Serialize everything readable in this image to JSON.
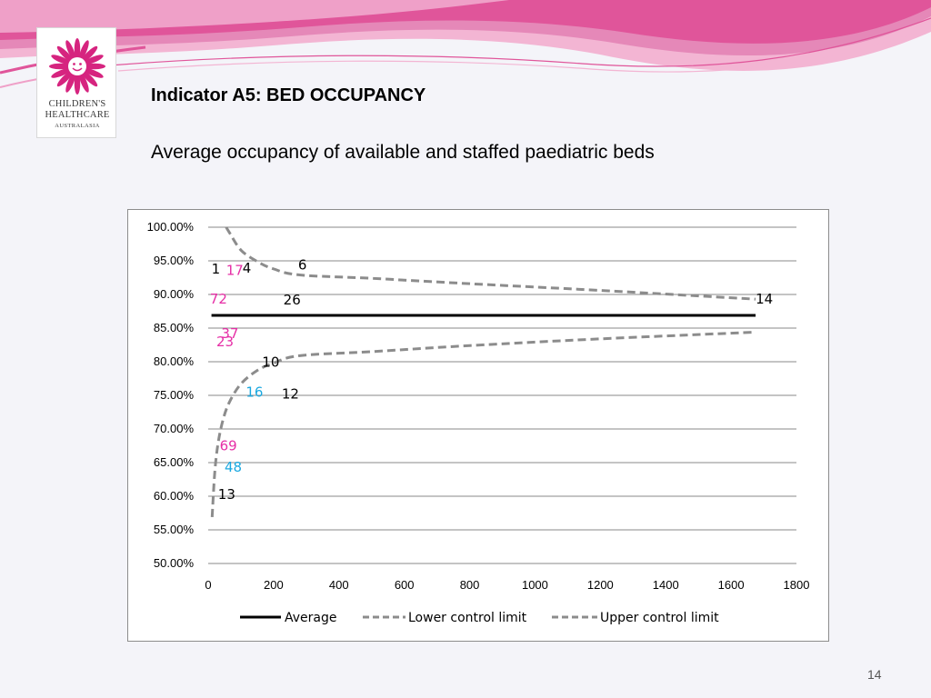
{
  "slide": {
    "title": "Indicator A5: BED OCCUPANCY",
    "subtitle": "Average occupancy of available and staffed paediatric beds",
    "page_number": "14"
  },
  "logo": {
    "line1": "CHILDREN'S",
    "line2": "HEALTHCARE",
    "line3": "AUSTRALASIA",
    "color": "#d6247f"
  },
  "colors": {
    "banner_pink": "#e0559a",
    "banner_light": "#f3b5d3",
    "average": "#000000",
    "limits": "#8c8c8c",
    "label_black": "#000000",
    "label_magenta": "#e62fa6",
    "label_cyan": "#1aa8e0"
  },
  "chart_data": {
    "type": "line",
    "xlim": [
      0,
      1800
    ],
    "ylim": [
      50,
      100
    ],
    "x_ticks": [
      "0",
      "200",
      "400",
      "600",
      "800",
      "1000",
      "1200",
      "1400",
      "1600",
      "1800"
    ],
    "y_ticks": [
      "50.00%",
      "55.00%",
      "60.00%",
      "65.00%",
      "70.00%",
      "75.00%",
      "80.00%",
      "85.00%",
      "90.00%",
      "95.00%",
      "100.00%"
    ],
    "grid": true,
    "legend_position": "bottom",
    "series": [
      {
        "name": "Average",
        "style": "solid",
        "x": [
          10,
          1675
        ],
        "y": [
          86.9,
          86.9
        ]
      },
      {
        "name": "Lower control limit",
        "style": "dashed",
        "x": [
          12,
          20,
          30,
          45,
          65,
          100,
          150,
          200,
          280,
          500,
          800,
          1200,
          1675
        ],
        "y": [
          56.9,
          63.5,
          67.8,
          71.3,
          74.0,
          76.7,
          78.7,
          79.8,
          80.9,
          81.5,
          82.4,
          83.4,
          84.4
        ]
      },
      {
        "name": "Upper control limit",
        "style": "dashed",
        "x": [
          55,
          65,
          100,
          150,
          200,
          280,
          500,
          800,
          1200,
          1675
        ],
        "y": [
          100,
          99.2,
          96.6,
          94.9,
          93.8,
          92.9,
          92.4,
          91.6,
          90.6,
          89.3
        ]
      }
    ],
    "points": [
      {
        "label": "1",
        "x": 10,
        "y": 93.8,
        "color": "label_black"
      },
      {
        "label": "17",
        "x": 55,
        "y": 93.6,
        "color": "label_magenta"
      },
      {
        "label": "4",
        "x": 105,
        "y": 93.9,
        "color": "label_black"
      },
      {
        "label": "6",
        "x": 275,
        "y": 94.4,
        "color": "label_black"
      },
      {
        "label": "72",
        "x": 5,
        "y": 89.3,
        "color": "label_magenta"
      },
      {
        "label": "26",
        "x": 230,
        "y": 89.2,
        "color": "label_black"
      },
      {
        "label": "14",
        "x": 1675,
        "y": 89.3,
        "color": "label_black"
      },
      {
        "label": "37",
        "x": 40,
        "y": 84.2,
        "color": "label_magenta"
      },
      {
        "label": "23",
        "x": 25,
        "y": 83.0,
        "color": "label_magenta"
      },
      {
        "label": "10",
        "x": 165,
        "y": 79.9,
        "color": "label_black"
      },
      {
        "label": "16",
        "x": 115,
        "y": 75.5,
        "color": "label_cyan"
      },
      {
        "label": "12",
        "x": 225,
        "y": 75.2,
        "color": "label_black"
      },
      {
        "label": "69",
        "x": 35,
        "y": 67.5,
        "color": "label_magenta"
      },
      {
        "label": "48",
        "x": 50,
        "y": 64.3,
        "color": "label_cyan"
      },
      {
        "label": "13",
        "x": 30,
        "y": 60.3,
        "color": "label_black"
      }
    ]
  }
}
